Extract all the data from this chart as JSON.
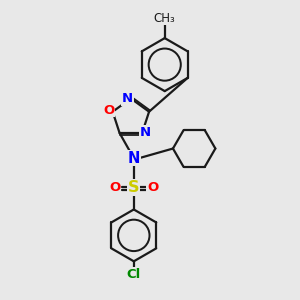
{
  "background_color": "#e8e8e8",
  "bond_color": "#1a1a1a",
  "atom_colors": {
    "O": "#ff0000",
    "N": "#0000ff",
    "S": "#cccc00",
    "Cl": "#008800"
  },
  "figsize": [
    3.0,
    3.0
  ],
  "dpi": 100
}
